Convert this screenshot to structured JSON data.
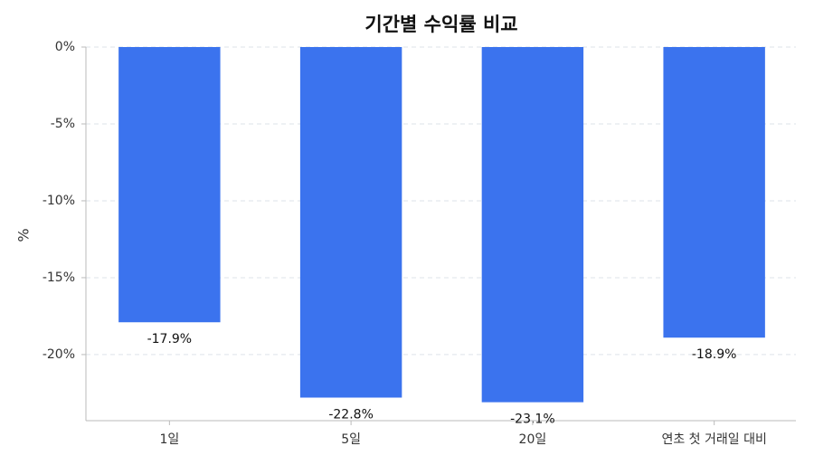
{
  "chart_data": {
    "type": "bar",
    "title": "기간별 수익률 비교",
    "ylabel": "%",
    "categories": [
      "1일",
      "5일",
      "20일",
      "연초 첫 거래일 대비"
    ],
    "values": [
      -17.9,
      -22.8,
      -23.1,
      -18.9
    ],
    "value_labels": [
      "-17.9%",
      "-22.8%",
      "-23.1%",
      "-18.9%"
    ],
    "color": "#3b73ee",
    "ylim": [
      -24.3,
      0
    ],
    "yticks": [
      {
        "value": 0,
        "label": "0%"
      },
      {
        "value": -5,
        "label": "-5%"
      },
      {
        "value": -10,
        "label": "-10%"
      },
      {
        "value": -15,
        "label": "-15%"
      },
      {
        "value": -20,
        "label": "-20%"
      }
    ],
    "grid": true
  }
}
